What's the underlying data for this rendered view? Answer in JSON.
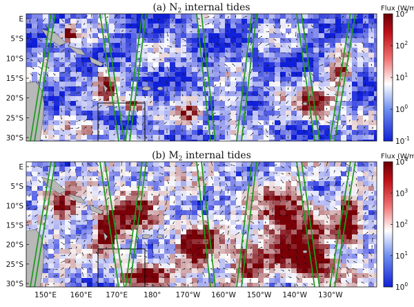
{
  "figure": {
    "colorbar_unit": "Flux (W/m)",
    "lat_ticks": [
      "E",
      "5°S",
      "10°S",
      "15°S",
      "20°S",
      "25°S",
      "30°S"
    ],
    "lon_ticks": [
      "150°E",
      "160°E",
      "170°E",
      "180°",
      "170°W",
      "160°W",
      "150°W",
      "140°W",
      "130°W"
    ],
    "colors": {
      "low": "#1020d8",
      "mid": "#ffffff",
      "high": "#7a0008",
      "land": "#b8b8b8",
      "track": "#1f9a1f",
      "box": "#000000",
      "arrow": "#111111"
    }
  },
  "panels": [
    {
      "prefix": "(a) ",
      "tide": "N",
      "sub": "2",
      "suffix": " internal tides",
      "cb_ticks": [
        {
          "base": "10",
          "exp": "3"
        },
        {
          "base": "10",
          "exp": "2"
        },
        {
          "base": "10",
          "exp": "1"
        },
        {
          "base": "10",
          "exp": "0"
        },
        {
          "base": "10",
          "exp": "-1"
        }
      ]
    },
    {
      "prefix": "(b) ",
      "tide": "M",
      "sub": "2",
      "suffix": " internal tides",
      "cb_ticks": [
        {
          "base": "10",
          "exp": "4"
        },
        {
          "base": "10",
          "exp": "3"
        },
        {
          "base": "10",
          "exp": "2"
        },
        {
          "base": "10",
          "exp": "1"
        },
        {
          "base": "10",
          "exp": "0"
        }
      ]
    }
  ]
}
